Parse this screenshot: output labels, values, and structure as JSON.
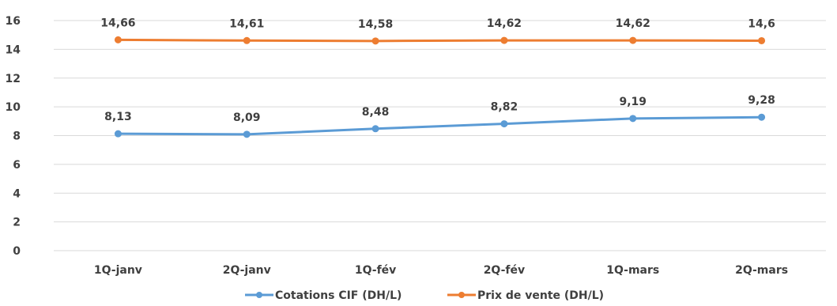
{
  "chart_data": {
    "type": "line",
    "categories": [
      "1Q-janv",
      "2Q-janv",
      "1Q-fév",
      "2Q-fév",
      "1Q-mars",
      "2Q-mars"
    ],
    "series": [
      {
        "name": "Cotations CIF (DH/L)",
        "values": [
          8.13,
          8.09,
          8.48,
          8.82,
          9.19,
          9.28
        ],
        "labels": [
          "8,13",
          "8,09",
          "8,48",
          "8,82",
          "9,19",
          "9,28"
        ],
        "color": "#5B9BD5"
      },
      {
        "name": "Prix de vente (DH/L)",
        "values": [
          14.66,
          14.61,
          14.58,
          14.62,
          14.62,
          14.6
        ],
        "labels": [
          "14,66",
          "14,61",
          "14,58",
          "14,62",
          "14,62",
          "14,6"
        ],
        "color": "#ED7D31"
      }
    ],
    "ylim": [
      0,
      16
    ],
    "yticks": [
      "0",
      "2",
      "4",
      "6",
      "8",
      "10",
      "12",
      "14",
      "16"
    ],
    "grid": true,
    "legend_position": "bottom"
  }
}
